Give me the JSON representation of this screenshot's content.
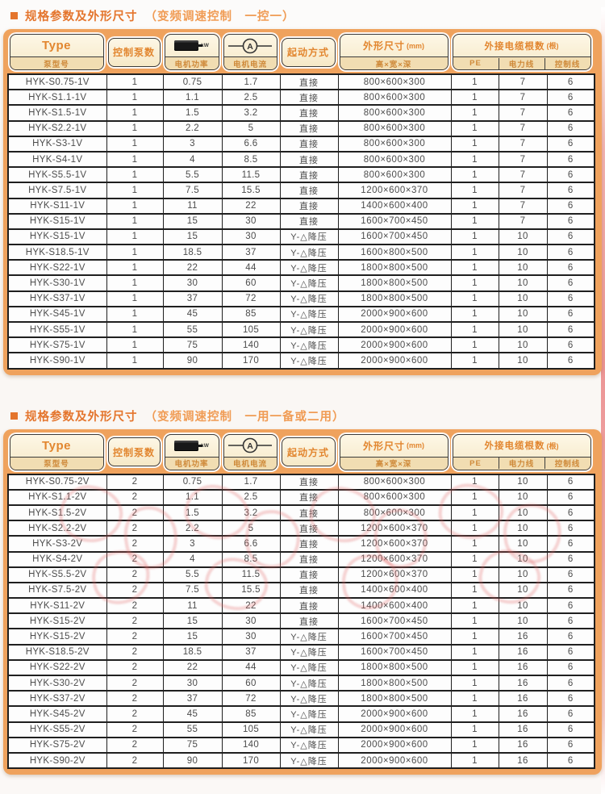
{
  "page": {
    "background": "#faf7f4",
    "accent_orange": "#e4752d",
    "panel_orange": "#efa25d",
    "header_cream": "#f9efd6",
    "table_border": "#1f1f1f",
    "watermark_pink": "#e06a6a"
  },
  "columns": {
    "type_label": "Type",
    "type_sub": "泵型号",
    "pumps_label": "控制泵数",
    "power_sub": "电机功率",
    "power_unit": "kW",
    "current_sub": "电机电流",
    "current_unit": "A",
    "start_label": "起动方式",
    "dims_label": "外形尺寸",
    "dims_unit": "(mm)",
    "dims_sub": "高×宽×深",
    "cable_label": "外接电缆根数",
    "cable_unit": "(根)",
    "cable_pe": "PE",
    "cable_power": "电力线",
    "cable_control": "控制线"
  },
  "tables": [
    {
      "title": "规格参数及外形尺寸",
      "title_paren": "（变频调速控制　一控一）",
      "rows": [
        [
          "HYK-S0.75-1V",
          "1",
          "0.75",
          "1.7",
          "直接",
          "800×600×300",
          "1",
          "7",
          "6"
        ],
        [
          "HYK-S1.1-1V",
          "1",
          "1.1",
          "2.5",
          "直接",
          "800×600×300",
          "1",
          "7",
          "6"
        ],
        [
          "HYK-S1.5-1V",
          "1",
          "1.5",
          "3.2",
          "直接",
          "800×600×300",
          "1",
          "7",
          "6"
        ],
        [
          "HYK-S2.2-1V",
          "1",
          "2.2",
          "5",
          "直接",
          "800×600×300",
          "1",
          "7",
          "6"
        ],
        [
          "HYK-S3-1V",
          "1",
          "3",
          "6.6",
          "直接",
          "800×600×300",
          "1",
          "7",
          "6"
        ],
        [
          "HYK-S4-1V",
          "1",
          "4",
          "8.5",
          "直接",
          "800×600×300",
          "1",
          "7",
          "6"
        ],
        [
          "HYK-S5.5-1V",
          "1",
          "5.5",
          "11.5",
          "直接",
          "800×600×300",
          "1",
          "7",
          "6"
        ],
        [
          "HYK-S7.5-1V",
          "1",
          "7.5",
          "15.5",
          "直接",
          "1200×600×370",
          "1",
          "7",
          "6"
        ],
        [
          "HYK-S11-1V",
          "1",
          "11",
          "22",
          "直接",
          "1400×600×400",
          "1",
          "7",
          "6"
        ],
        [
          "HYK-S15-1V",
          "1",
          "15",
          "30",
          "直接",
          "1600×700×450",
          "1",
          "7",
          "6"
        ],
        [
          "HYK-S15-1V",
          "1",
          "15",
          "30",
          "Y-△降压",
          "1600×700×450",
          "1",
          "10",
          "6"
        ],
        [
          "HYK-S18.5-1V",
          "1",
          "18.5",
          "37",
          "Y-△降压",
          "1600×800×500",
          "1",
          "10",
          "6"
        ],
        [
          "HYK-S22-1V",
          "1",
          "22",
          "44",
          "Y-△降压",
          "1800×800×500",
          "1",
          "10",
          "6"
        ],
        [
          "HYK-S30-1V",
          "1",
          "30",
          "60",
          "Y-△降压",
          "1800×800×500",
          "1",
          "10",
          "6"
        ],
        [
          "HYK-S37-1V",
          "1",
          "37",
          "72",
          "Y-△降压",
          "1800×800×500",
          "1",
          "10",
          "6"
        ],
        [
          "HYK-S45-1V",
          "1",
          "45",
          "85",
          "Y-△降压",
          "2000×900×600",
          "1",
          "10",
          "6"
        ],
        [
          "HYK-S55-1V",
          "1",
          "55",
          "105",
          "Y-△降压",
          "2000×900×600",
          "1",
          "10",
          "6"
        ],
        [
          "HYK-S75-1V",
          "1",
          "75",
          "140",
          "Y-△降压",
          "2000×900×600",
          "1",
          "10",
          "6"
        ],
        [
          "HYK-S90-1V",
          "1",
          "90",
          "170",
          "Y-△降压",
          "2000×900×600",
          "1",
          "10",
          "6"
        ]
      ]
    },
    {
      "title": "规格参数及外形尺寸",
      "title_paren": "（变频调速控制　一用一备或二用）",
      "rows": [
        [
          "HYK-S0.75-2V",
          "2",
          "0.75",
          "1.7",
          "直接",
          "800×600×300",
          "1",
          "10",
          "6"
        ],
        [
          "HYK-S1.1-2V",
          "2",
          "1.1",
          "2.5",
          "直接",
          "800×600×300",
          "1",
          "10",
          "6"
        ],
        [
          "HYK-S1.5-2V",
          "2",
          "1.5",
          "3.2",
          "直接",
          "800×600×300",
          "1",
          "10",
          "6"
        ],
        [
          "HYK-S2.2-2V",
          "2",
          "2.2",
          "5",
          "直接",
          "1200×600×370",
          "1",
          "10",
          "6"
        ],
        [
          "HYK-S3-2V",
          "2",
          "3",
          "6.6",
          "直接",
          "1200×600×370",
          "1",
          "10",
          "6"
        ],
        [
          "HYK-S4-2V",
          "2",
          "4",
          "8.5",
          "直接",
          "1200×600×370",
          "1",
          "10",
          "6"
        ],
        [
          "HYK-S5.5-2V",
          "2",
          "5.5",
          "11.5",
          "直接",
          "1200×600×370",
          "1",
          "10",
          "6"
        ],
        [
          "HYK-S7.5-2V",
          "2",
          "7.5",
          "15.5",
          "直接",
          "1400×600×400",
          "1",
          "10",
          "6"
        ],
        [
          "HYK-S11-2V",
          "2",
          "11",
          "22",
          "直接",
          "1400×600×400",
          "1",
          "10",
          "6"
        ],
        [
          "HYK-S15-2V",
          "2",
          "15",
          "30",
          "直接",
          "1600×700×450",
          "1",
          "10",
          "6"
        ],
        [
          "HYK-S15-2V",
          "2",
          "15",
          "30",
          "Y-△降压",
          "1600×700×450",
          "1",
          "16",
          "6"
        ],
        [
          "HYK-S18.5-2V",
          "2",
          "18.5",
          "37",
          "Y-△降压",
          "1600×700×450",
          "1",
          "16",
          "6"
        ],
        [
          "HYK-S22-2V",
          "2",
          "22",
          "44",
          "Y-△降压",
          "1800×800×500",
          "1",
          "16",
          "6"
        ],
        [
          "HYK-S30-2V",
          "2",
          "30",
          "60",
          "Y-△降压",
          "1800×800×500",
          "1",
          "16",
          "6"
        ],
        [
          "HYK-S37-2V",
          "2",
          "37",
          "72",
          "Y-△降压",
          "1800×800×500",
          "1",
          "16",
          "6"
        ],
        [
          "HYK-S45-2V",
          "2",
          "45",
          "85",
          "Y-△降压",
          "2000×900×600",
          "1",
          "16",
          "6"
        ],
        [
          "HYK-S55-2V",
          "2",
          "55",
          "105",
          "Y-△降压",
          "2000×900×600",
          "1",
          "16",
          "6"
        ],
        [
          "HYK-S75-2V",
          "2",
          "75",
          "140",
          "Y-△降压",
          "2000×900×600",
          "1",
          "16",
          "6"
        ],
        [
          "HYK-S90-2V",
          "2",
          "90",
          "170",
          "Y-△降压",
          "2000×900×600",
          "1",
          "16",
          "6"
        ]
      ]
    }
  ]
}
